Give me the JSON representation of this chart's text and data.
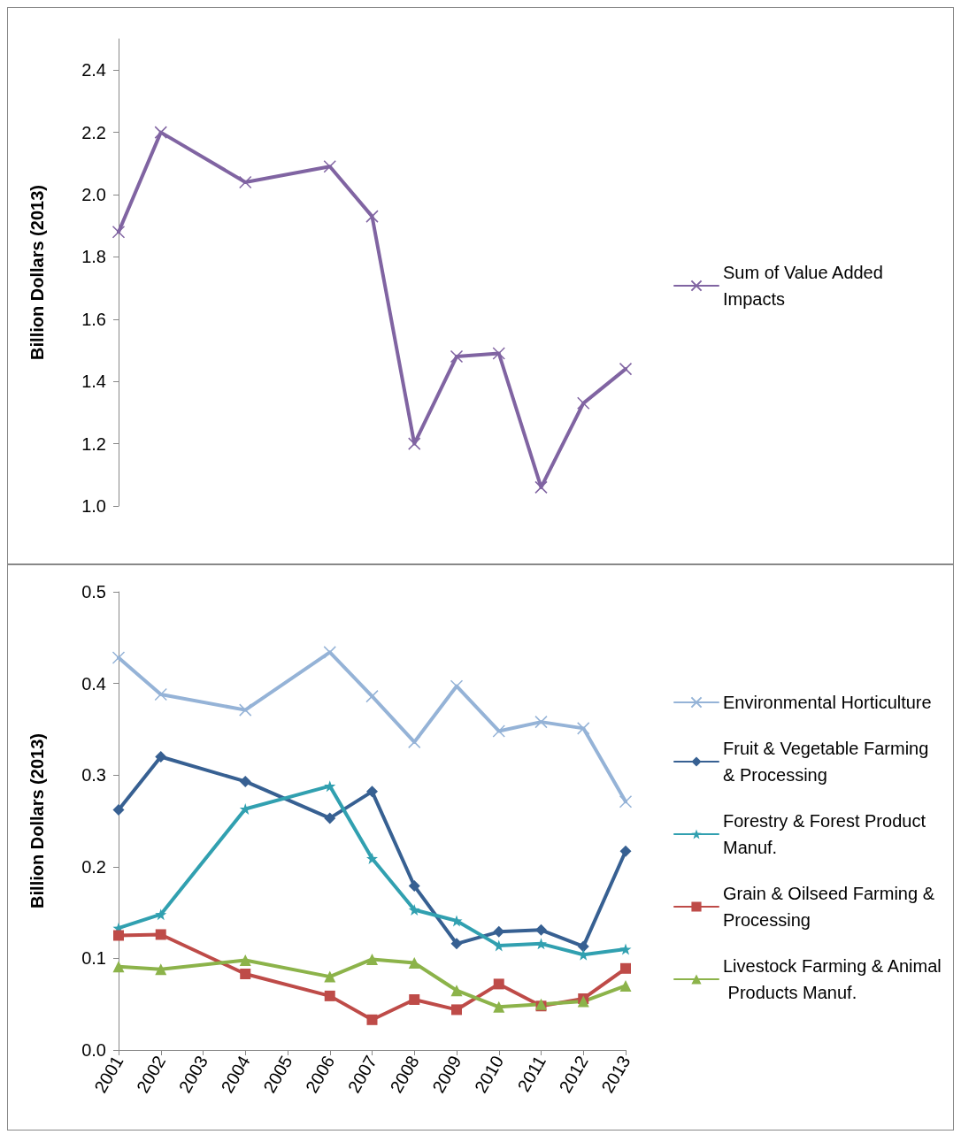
{
  "chart_data": [
    {
      "type": "line",
      "ylabel": "Billion Dollars (2013)",
      "x": [
        2001,
        2002,
        2004,
        2006,
        2007,
        2008,
        2009,
        2010,
        2011,
        2012,
        2013
      ],
      "xlim": [
        2001,
        2013
      ],
      "ylim": [
        1.0,
        2.5
      ],
      "yticks": [
        {
          "value": 1.0,
          "label": "1.0"
        },
        1.2,
        1.4,
        1.6,
        1.8,
        {
          "value": 2.0,
          "label": "2.0"
        },
        2.2,
        2.4
      ],
      "tick_labels": "y",
      "legend": "right",
      "grid": false,
      "series": [
        {
          "name": "Sum of Value Added Impacts",
          "color": "#8064a2",
          "marker": "cross",
          "values": [
            1.88,
            2.2,
            2.04,
            2.09,
            1.93,
            1.2,
            1.48,
            1.49,
            1.06,
            1.33,
            1.44
          ]
        }
      ]
    },
    {
      "type": "line",
      "ylabel": "Billion Dollars (2013)",
      "x": [
        2001,
        2002,
        2004,
        2006,
        2007,
        2008,
        2009,
        2010,
        2011,
        2012,
        2013
      ],
      "xlim": [
        2001,
        2013
      ],
      "xticks": [
        2001,
        2002,
        2003,
        2004,
        2005,
        2006,
        2007,
        2008,
        2009,
        2010,
        2011,
        2012,
        2013
      ],
      "ylim": [
        0,
        0.5
      ],
      "yticks": [
        {
          "value": 0,
          "label": "0.0"
        },
        0.1,
        0.2,
        0.3,
        0.4,
        0.5
      ],
      "legend": "right",
      "grid": false,
      "series": [
        {
          "name": "Environmental Horticulture",
          "color": "#95b3d7",
          "marker": "cross",
          "values": [
            0.428,
            0.388,
            0.371,
            0.434,
            0.386,
            0.336,
            0.397,
            0.348,
            0.358,
            0.351,
            0.271
          ]
        },
        {
          "name": "Fruit & Vegetable Farming & Processing",
          "color": "#376092",
          "marker": "diamond",
          "values": [
            0.262,
            0.32,
            0.293,
            0.253,
            0.282,
            0.179,
            0.116,
            0.129,
            0.131,
            0.113,
            0.217
          ]
        },
        {
          "name": "Forestry & Forest Product Manuf.",
          "color": "#31a0b0",
          "marker": "star",
          "values": [
            0.133,
            0.148,
            0.263,
            0.288,
            0.209,
            0.153,
            0.141,
            0.114,
            0.116,
            0.104,
            0.11
          ]
        },
        {
          "name": "Grain & Oilseed Farming & Processing",
          "color": "#be4b48",
          "marker": "square",
          "values": [
            0.125,
            0.126,
            0.083,
            0.059,
            0.033,
            0.055,
            0.044,
            0.072,
            0.048,
            0.056,
            0.089
          ]
        },
        {
          "name": "Livestock Farming & Animal Products Manuf.",
          "color": "#8cb34a",
          "marker": "triangle",
          "values": [
            0.091,
            0.088,
            0.098,
            0.08,
            0.099,
            0.095,
            0.065,
            0.047,
            0.05,
            0.053,
            0.07
          ]
        }
      ]
    }
  ]
}
